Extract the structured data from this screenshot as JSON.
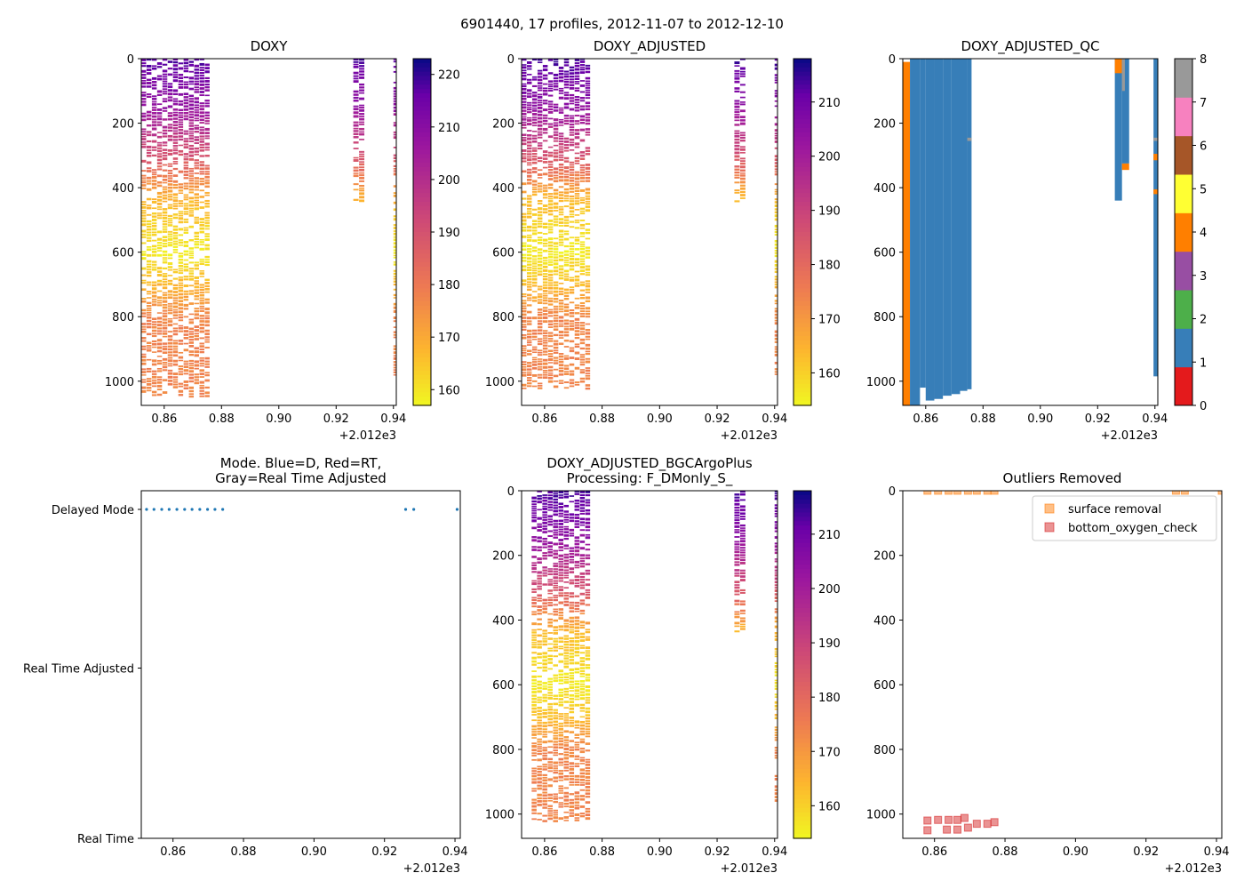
{
  "figure": {
    "suptitle": "6901440, 17 profiles, 2012-11-07 to 2012-12-10",
    "x_offset_label": "+2.012e3"
  },
  "chart_data": [
    {
      "id": "doxy",
      "type": "heatmap",
      "title": "DOXY",
      "xlim": [
        0.852,
        0.941
      ],
      "ylim": [
        1075,
        0
      ],
      "xticks": [
        "0.86",
        "0.88",
        "0.90",
        "0.92",
        "0.94"
      ],
      "yticks": [
        "0",
        "200",
        "400",
        "600",
        "800",
        "1000"
      ],
      "colorbar": {
        "cmap": "plasma_r",
        "range": [
          157,
          223
        ],
        "ticks": [
          "160",
          "170",
          "180",
          "190",
          "200",
          "210",
          "220"
        ]
      },
      "profile_groups": [
        {
          "x0": 0.852,
          "x1": 0.876,
          "max_depth": 1045
        },
        {
          "x0": 0.926,
          "x1": 0.93,
          "max_depth": 440
        },
        {
          "x0": 0.94,
          "x1": 0.941,
          "max_depth": 980
        }
      ],
      "value_by_depth": [
        [
          0,
          218
        ],
        [
          150,
          208
        ],
        [
          300,
          190
        ],
        [
          430,
          168
        ],
        [
          600,
          159
        ],
        [
          700,
          168
        ],
        [
          800,
          178
        ],
        [
          1045,
          178
        ]
      ]
    },
    {
      "id": "doxy_adjusted",
      "type": "heatmap",
      "title": "DOXY_ADJUSTED",
      "xlim": [
        0.852,
        0.941
      ],
      "ylim": [
        1075,
        0
      ],
      "xticks": [
        "0.86",
        "0.88",
        "0.90",
        "0.92",
        "0.94"
      ],
      "yticks": [
        "0",
        "200",
        "400",
        "600",
        "800",
        "1000"
      ],
      "colorbar": {
        "cmap": "plasma_r",
        "range": [
          154,
          218
        ],
        "ticks": [
          "160",
          "170",
          "180",
          "190",
          "200",
          "210"
        ]
      },
      "profile_groups": [
        {
          "x0": 0.852,
          "x1": 0.876,
          "max_depth": 1020
        },
        {
          "x0": 0.926,
          "x1": 0.93,
          "max_depth": 440
        },
        {
          "x0": 0.94,
          "x1": 0.941,
          "max_depth": 980
        }
      ],
      "value_by_depth": [
        [
          0,
          214
        ],
        [
          150,
          204
        ],
        [
          300,
          186
        ],
        [
          430,
          164
        ],
        [
          600,
          156
        ],
        [
          700,
          164
        ],
        [
          800,
          174
        ],
        [
          1020,
          174
        ]
      ]
    },
    {
      "id": "doxy_adjusted_qc",
      "type": "heatmap",
      "title": "DOXY_ADJUSTED_QC",
      "xlim": [
        0.852,
        0.941
      ],
      "ylim": [
        1075,
        0
      ],
      "xticks": [
        "0.86",
        "0.88",
        "0.90",
        "0.92",
        "0.94"
      ],
      "yticks": [
        "0",
        "200",
        "400",
        "600",
        "800",
        "1000"
      ],
      "colorbar": {
        "categorical": true,
        "ticks": [
          "0",
          "1",
          "2",
          "3",
          "4",
          "5",
          "6",
          "7",
          "8"
        ],
        "colors": [
          "#e41a1c",
          "#377eb8",
          "#4daf4a",
          "#984ea3",
          "#ff7f00",
          "#ffff33",
          "#a65628",
          "#f781bf",
          "#999999"
        ]
      },
      "blocks": [
        {
          "x0": 0.852,
          "x1": 0.8545,
          "y0": 10,
          "y1": 1075,
          "flag": 4
        },
        {
          "x0": 0.8545,
          "x1": 0.858,
          "y0": 0,
          "y1": 1075,
          "flag": 1
        },
        {
          "x0": 0.858,
          "x1": 0.86,
          "y0": 0,
          "y1": 1020,
          "flag": 1
        },
        {
          "x0": 0.86,
          "x1": 0.863,
          "y0": 0,
          "y1": 1060,
          "flag": 1
        },
        {
          "x0": 0.863,
          "x1": 0.866,
          "y0": 0,
          "y1": 1055,
          "flag": 1
        },
        {
          "x0": 0.866,
          "x1": 0.869,
          "y0": 0,
          "y1": 1045,
          "flag": 1
        },
        {
          "x0": 0.869,
          "x1": 0.872,
          "y0": 0,
          "y1": 1040,
          "flag": 1
        },
        {
          "x0": 0.872,
          "x1": 0.8745,
          "y0": 0,
          "y1": 1030,
          "flag": 1
        },
        {
          "x0": 0.8745,
          "x1": 0.876,
          "y0": 0,
          "y1": 1025,
          "flag": 1
        },
        {
          "x0": 0.8745,
          "x1": 0.876,
          "y0": 245,
          "y1": 255,
          "flag": 8
        },
        {
          "x0": 0.926,
          "x1": 0.9285,
          "y0": 0,
          "y1": 440,
          "flag": 1
        },
        {
          "x0": 0.926,
          "x1": 0.9285,
          "y0": 0,
          "y1": 45,
          "flag": 4
        },
        {
          "x0": 0.9285,
          "x1": 0.931,
          "y0": 0,
          "y1": 325,
          "flag": 1
        },
        {
          "x0": 0.9285,
          "x1": 0.931,
          "y0": 325,
          "y1": 345,
          "flag": 4
        },
        {
          "x0": 0.9285,
          "x1": 0.9295,
          "y0": 0,
          "y1": 100,
          "flag": 8
        },
        {
          "x0": 0.9395,
          "x1": 0.941,
          "y0": 0,
          "y1": 985,
          "flag": 1
        },
        {
          "x0": 0.9395,
          "x1": 0.941,
          "y0": 295,
          "y1": 315,
          "flag": 4
        },
        {
          "x0": 0.9395,
          "x1": 0.941,
          "y0": 405,
          "y1": 420,
          "flag": 4
        },
        {
          "x0": 0.9395,
          "x1": 0.941,
          "y0": 245,
          "y1": 255,
          "flag": 8
        }
      ]
    },
    {
      "id": "mode",
      "type": "scatter",
      "title": "Mode. Blue=D, Red=RT,",
      "title_line2": "Gray=Real Time Adjusted",
      "xlim": [
        0.851,
        0.9415
      ],
      "xticks": [
        "0.86",
        "0.88",
        "0.90",
        "0.92",
        "0.94"
      ],
      "y_categories": [
        "Real Time",
        "Real Time Adjusted",
        "Delayed Mode"
      ],
      "x": [
        0.8525,
        0.8546,
        0.8568,
        0.8589,
        0.8611,
        0.8633,
        0.8654,
        0.8676,
        0.8698,
        0.8719,
        0.8741,
        0.926,
        0.9283,
        0.9406
      ],
      "mode_index": [
        2,
        2,
        2,
        2,
        2,
        2,
        2,
        2,
        2,
        2,
        2,
        2,
        2,
        2
      ],
      "color": "#1f77b4"
    },
    {
      "id": "doxy_bgc",
      "type": "heatmap",
      "title": "DOXY_ADJUSTED_BGCArgoPlus",
      "title_line2": "Processing: F_DMonly_S_",
      "xlim": [
        0.852,
        0.941
      ],
      "ylim": [
        1075,
        0
      ],
      "xticks": [
        "0.86",
        "0.88",
        "0.90",
        "0.92",
        "0.94"
      ],
      "yticks": [
        "0",
        "200",
        "400",
        "600",
        "800",
        "1000"
      ],
      "colorbar": {
        "cmap": "plasma_r",
        "range": [
          154,
          218
        ],
        "ticks": [
          "160",
          "170",
          "180",
          "190",
          "200",
          "210"
        ]
      },
      "profile_groups": [
        {
          "x0": 0.8555,
          "x1": 0.876,
          "max_depth": 1020
        },
        {
          "x0": 0.926,
          "x1": 0.93,
          "max_depth": 440
        },
        {
          "x0": 0.94,
          "x1": 0.941,
          "max_depth": 980
        }
      ],
      "value_by_depth": [
        [
          0,
          214
        ],
        [
          150,
          204
        ],
        [
          300,
          186
        ],
        [
          430,
          164
        ],
        [
          600,
          156
        ],
        [
          700,
          164
        ],
        [
          800,
          174
        ],
        [
          1020,
          174
        ]
      ]
    },
    {
      "id": "outliers",
      "type": "scatter",
      "title": "Outliers Removed",
      "xlim": [
        0.851,
        0.9415
      ],
      "ylim": [
        1075,
        0
      ],
      "xticks": [
        "0.86",
        "0.88",
        "0.90",
        "0.92",
        "0.94"
      ],
      "yticks": [
        "0",
        "200",
        "400",
        "600",
        "800",
        "1000"
      ],
      "legend_position": "top-right",
      "series": [
        {
          "name": "surface removal",
          "color": "#ff7f0e",
          "x": [
            0.858,
            0.861,
            0.864,
            0.8665,
            0.8695,
            0.872,
            0.875,
            0.877,
            0.9285,
            0.931,
            0.9415
          ],
          "y": [
            0,
            0,
            0,
            0,
            0,
            0,
            0,
            0,
            0,
            0,
            0
          ]
        },
        {
          "name": "bottom_oxygen_check",
          "color": "#d62728",
          "x": [
            0.858,
            0.861,
            0.864,
            0.8665,
            0.8685,
            0.872,
            0.875,
            0.877,
            0.858,
            0.8635,
            0.8665,
            0.8695
          ],
          "y": [
            1020,
            1018,
            1018,
            1018,
            1012,
            1030,
            1030,
            1025,
            1050,
            1048,
            1048,
            1042
          ]
        }
      ]
    }
  ]
}
